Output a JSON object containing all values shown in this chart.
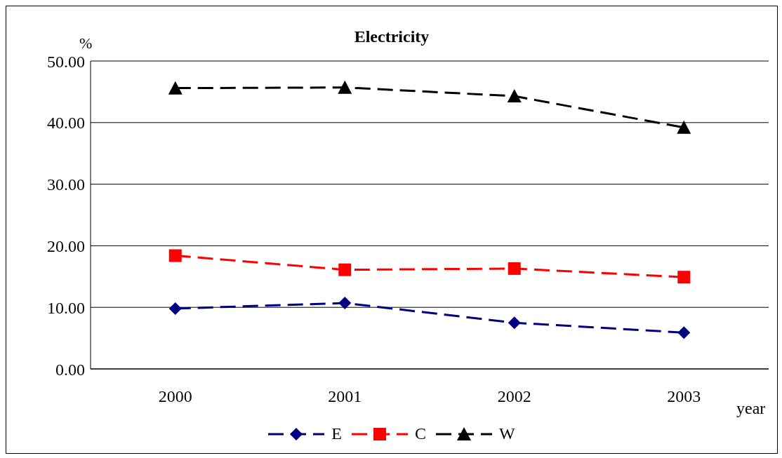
{
  "chart_data": {
    "type": "line",
    "title": "Electricity",
    "ylabel": "%",
    "xlabel": "year",
    "categories": [
      "2000",
      "2001",
      "2002",
      "2003"
    ],
    "series": [
      {
        "name": "E",
        "color": "#000080",
        "marker": "diamond",
        "values": [
          9.8,
          10.7,
          7.5,
          5.9
        ]
      },
      {
        "name": "C",
        "color": "#ff0000",
        "marker": "square",
        "values": [
          18.4,
          16.1,
          16.3,
          14.9
        ]
      },
      {
        "name": "W",
        "color": "#000000",
        "marker": "triangle",
        "values": [
          45.6,
          45.7,
          44.3,
          39.2
        ]
      }
    ],
    "ylim": [
      0,
      50
    ],
    "yticks": [
      {
        "value": 0,
        "label": "0.00"
      },
      {
        "value": 10,
        "label": "10.00"
      },
      {
        "value": 20,
        "label": "20.00"
      },
      {
        "value": 30,
        "label": "30.00"
      },
      {
        "value": 40,
        "label": "40.00"
      },
      {
        "value": 50,
        "label": "50.00"
      }
    ],
    "grid": "y",
    "legend": "bottom",
    "line_style": "dashed"
  }
}
